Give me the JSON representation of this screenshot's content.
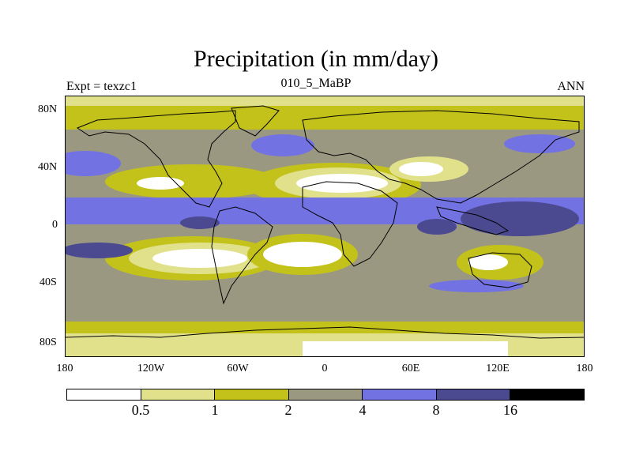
{
  "title": "Precipitation (in mm/day)",
  "subtitle_left": "Expt = texzc1",
  "subtitle_center": "010_5_MaBP",
  "subtitle_right": "ANN",
  "y_ticks": [
    "80N",
    "40N",
    "0",
    "40S",
    "80S"
  ],
  "x_ticks": [
    "180",
    "120W",
    "60W",
    "0",
    "60E",
    "120E",
    "180"
  ],
  "colorbar": {
    "colors": [
      "#ffffff",
      "#e1e18c",
      "#c3c21b",
      "#9b9882",
      "#7372e3",
      "#4b4a91",
      "#000000"
    ],
    "labels": [
      "0.5",
      "1",
      "2",
      "4",
      "8",
      "16"
    ]
  },
  "colors": {
    "lt05": "#ffffff",
    "b05_1": "#e1e18c",
    "b1_2": "#c3c21b",
    "b2_4": "#9b9882",
    "b4_8": "#7372e3",
    "b8_16": "#4b4a91",
    "coast": "#000000"
  }
}
